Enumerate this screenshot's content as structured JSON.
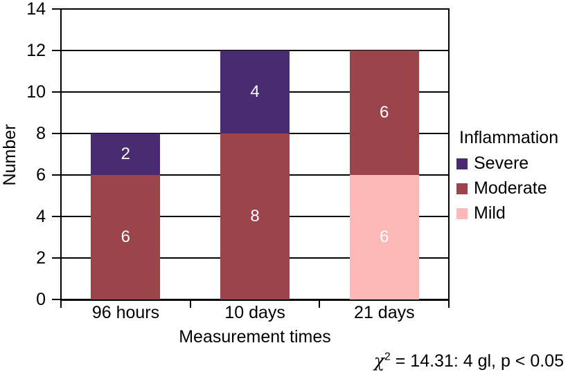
{
  "chart_data": {
    "type": "bar",
    "stacked": true,
    "categories": [
      "96 hours",
      "10 days",
      "21 days"
    ],
    "series": [
      {
        "name": "Severe",
        "color": "#482B70",
        "values": [
          2,
          4,
          0
        ]
      },
      {
        "name": "Moderate",
        "color": "#9B444C",
        "values": [
          6,
          8,
          6
        ]
      },
      {
        "name": "Mild",
        "color": "#FCB9B7",
        "values": [
          0,
          0,
          6
        ]
      }
    ],
    "xlabel": "Measurement times",
    "ylabel": "Number",
    "ylim": [
      0,
      14
    ],
    "ytick_step": 2,
    "y_ticks": [
      "14",
      "12",
      "10",
      "8",
      "6",
      "4",
      "2",
      "0"
    ],
    "grid": true,
    "gridline_color": "#000000",
    "bar_label_color": "#ffffff",
    "legend": {
      "title": "Inflammation",
      "position": "right"
    },
    "annotation": {
      "chi_symbol": "χ",
      "exponent": "2",
      "text": " = 14.31: 4 gl, p < 0.05"
    }
  }
}
